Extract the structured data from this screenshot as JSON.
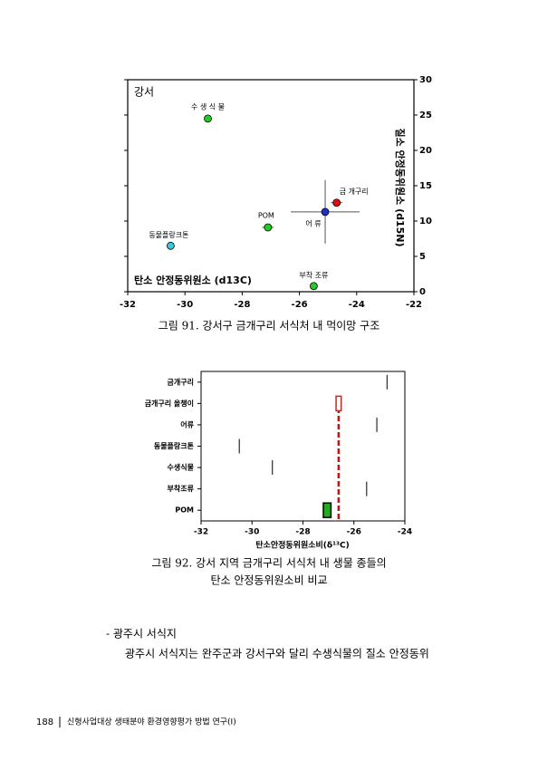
{
  "figures": [
    {
      "chart_data": {
        "type": "scatter",
        "title": "강서",
        "xlabel": "탄소 안정동위원소 (d13C)",
        "ylabel": "질소 안정동위원소 (d15N)",
        "xlim": [
          -32,
          -22
        ],
        "xticks": [
          -32,
          -30,
          -28,
          -26,
          -24,
          -22
        ],
        "ylim": [
          0,
          30
        ],
        "yticks": [
          0,
          5,
          10,
          15,
          20,
          25,
          30
        ],
        "points": [
          {
            "name": "수 생 식 물",
            "x": -29.2,
            "y": 24.5,
            "color": "#22cc22"
          },
          {
            "name": "POM",
            "x": -27.1,
            "y": 9.1,
            "color": "#22cc22",
            "xerr": 0.2,
            "yerr": 0.5
          },
          {
            "name": "동물플랑크톤",
            "x": -30.5,
            "y": 6.5,
            "color": "#33ccdd"
          },
          {
            "name": "부착 조류",
            "x": -25.5,
            "y": 0.8,
            "color": "#22cc22"
          },
          {
            "name": "어 류",
            "x": -25.1,
            "y": 11.3,
            "color": "#1f2fcc",
            "xerr": 1.2,
            "yerr": 4.5
          },
          {
            "name": "금 개구리",
            "x": -24.7,
            "y": 12.6,
            "color": "#dd1111",
            "xerr": 0.2,
            "yerr": 0.4,
            "label_color": "#cc0000"
          }
        ]
      },
      "caption": "그림 91. 강서구 금개구리 서식처 내 먹이망 구조"
    },
    {
      "chart_data": {
        "type": "range",
        "xlabel": "탄소안정동위원소비(δ¹³C)",
        "xlim": [
          -32,
          -24
        ],
        "xticks": [
          -32,
          -30,
          -28,
          -26,
          -24
        ],
        "reference_line": -26.6,
        "reference_color": "#cc1111",
        "items": [
          {
            "name": "금개구리",
            "value": -24.7
          },
          {
            "name": "금개구리 올챙이",
            "low": -26.7,
            "high": -26.5,
            "color": "#cc2222"
          },
          {
            "name": "어류",
            "value": -25.1
          },
          {
            "name": "동물플랑크톤",
            "value": -30.5
          },
          {
            "name": "수생식물",
            "value": -29.2
          },
          {
            "name": "부착조류",
            "value": -25.5
          },
          {
            "name": "POM",
            "low": -27.2,
            "high": -26.9,
            "color": "#22aa22"
          }
        ]
      },
      "caption": [
        "그림 92. 강서 지역 금개구리 서식처 내 생물 종들의",
        "탄소 안정동위원소비 비교"
      ]
    }
  ],
  "body": {
    "heading": "- 광주시 서식지",
    "paragraph": "광주시 서식지는 완주군과 강서구와 달리 수생식물의 질소 안정동위"
  },
  "footer": {
    "page": "188",
    "title": "신형사업대상 생태분야 환경영향평가 방법 연구(Ⅰ)"
  }
}
